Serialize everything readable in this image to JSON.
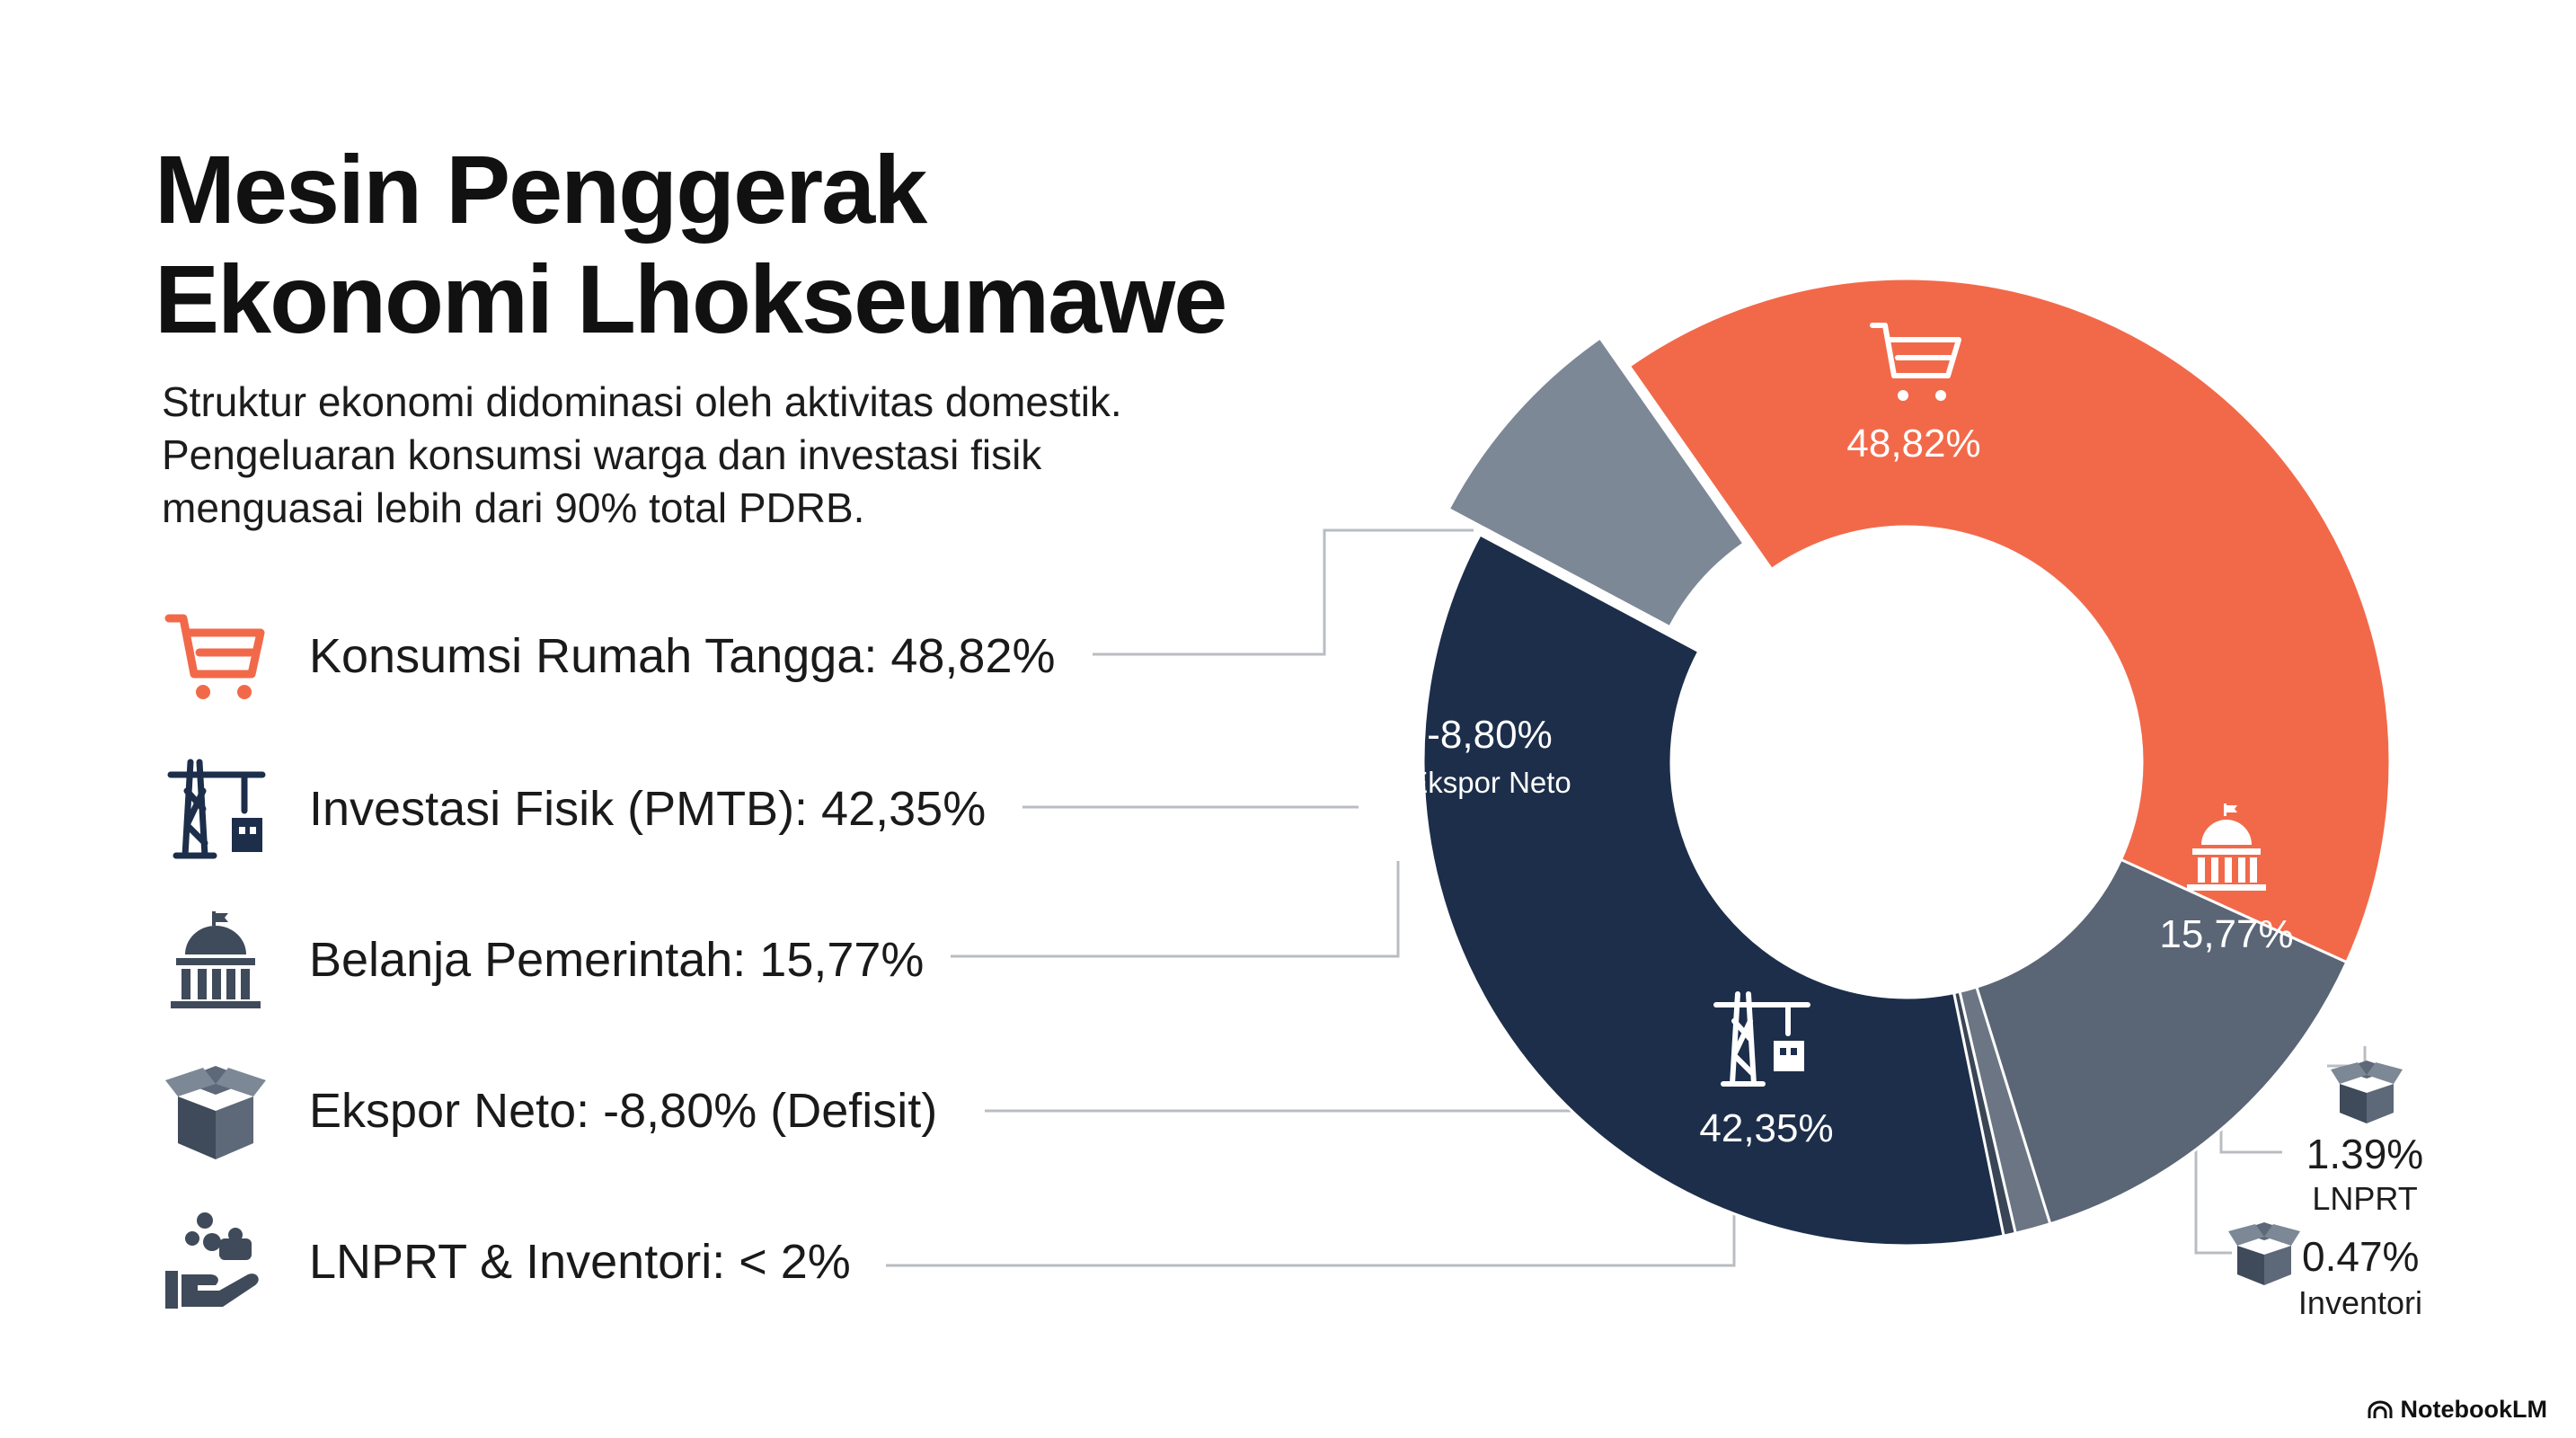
{
  "header": {
    "title_lines": [
      "Mesin Penggerak",
      "Ekonomi Lhokseumawe"
    ],
    "subtitle_lines": [
      "Struktur ekonomi didominasi oleh aktivitas domestik.",
      "Pengeluaran konsumsi warga dan investasi fisik",
      "menguasai lebih dari 90% total PDRB."
    ]
  },
  "legend": [
    {
      "label": "Konsumsi Rumah Tangga: 48,82%",
      "icon": "shopping-cart-icon",
      "color": "#f2694a"
    },
    {
      "label": "Investasi Fisik (PMTB): 42,35%",
      "icon": "construction-crane-icon",
      "color": "#1c2e4a"
    },
    {
      "label": "Belanja Pemerintah: 15,77%",
      "icon": "government-building-icon",
      "color": "#3f4a5a"
    },
    {
      "label": "Ekspor Neto: -8,80% (Defisit)",
      "icon": "open-box-icon",
      "color": "#3f4a5a"
    },
    {
      "label": "LNPRT & Inventori: < 2%",
      "icon": "hand-coins-icon",
      "color": "#3f4a5a"
    }
  ],
  "chart_data": {
    "type": "pie",
    "variant": "donut",
    "unit": "% of PDRB",
    "slices": [
      {
        "name": "Konsumsi Rumah Tangga",
        "value": 48.82,
        "display": "48,82%",
        "color": "#f2694a",
        "icon": "shopping-cart-icon"
      },
      {
        "name": "Belanja Pemerintah",
        "value": 15.77,
        "display": "15,77%",
        "color": "#5a6576",
        "icon": "government-building-icon"
      },
      {
        "name": "LNPRT",
        "value": 1.39,
        "display": "1.39%",
        "label": "LNPRT",
        "color": "#6b7584",
        "icon": "open-box-icon"
      },
      {
        "name": "Inventori",
        "value": 0.47,
        "display": "0.47%",
        "label": "Inventori",
        "color": "#3a4556",
        "icon": "open-box-icon"
      },
      {
        "name": "Investasi Fisik (PMTB)",
        "value": 42.35,
        "display": "42,35%",
        "color": "#1c2e4a",
        "icon": "construction-crane-icon"
      },
      {
        "name": "Ekspor Neto",
        "value": -8.8,
        "display": "-8,80%",
        "label": "Ekspor Neto",
        "color": "#7d8896",
        "exploded": true
      }
    ]
  },
  "brand": {
    "name": "NotebookLM"
  }
}
